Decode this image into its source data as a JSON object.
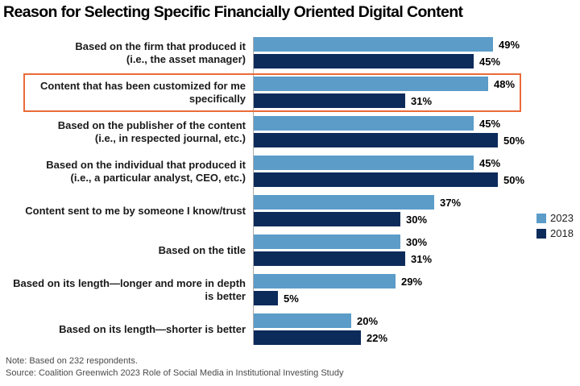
{
  "title": "Reason for Selecting Specific Financially Oriented Digital Content",
  "chart_data": {
    "type": "bar",
    "orientation": "horizontal",
    "unit": "%",
    "xlim": [
      0,
      50
    ],
    "grid": false,
    "legend_position": "right",
    "series": [
      {
        "name": "2023",
        "color": "#5B9CC9"
      },
      {
        "name": "2018",
        "color": "#0C2B5B"
      }
    ],
    "highlight_box_color": "#EB6A38",
    "rows": [
      {
        "label": "Based on the firm that produced it\n(i.e., the asset manager)",
        "values": [
          49,
          45
        ],
        "highlighted": false
      },
      {
        "label": "Content that has been customized for me\nspecifically",
        "values": [
          48,
          31
        ],
        "highlighted": true
      },
      {
        "label": "Based on the publisher of the content\n(i.e., in respected journal, etc.)",
        "values": [
          45,
          50
        ],
        "highlighted": false
      },
      {
        "label": "Based on the individual that produced it\n(i.e., a particular analyst, CEO, etc.)",
        "values": [
          45,
          50
        ],
        "highlighted": false
      },
      {
        "label": "Content sent to me by someone I know/trust",
        "values": [
          37,
          30
        ],
        "highlighted": false
      },
      {
        "label": "Based on the title",
        "values": [
          30,
          31
        ],
        "highlighted": false
      },
      {
        "label": "Based on its length—longer and more in depth\nis better",
        "values": [
          29,
          5
        ],
        "highlighted": false
      },
      {
        "label": "Based on its length—shorter is better",
        "values": [
          20,
          22
        ],
        "highlighted": false
      }
    ]
  },
  "footer": {
    "note": "Note: Based on 232 respondents.",
    "source": "Source: Coalition Greenwich 2023 Role of Social Media in Institutional Investing Study"
  }
}
